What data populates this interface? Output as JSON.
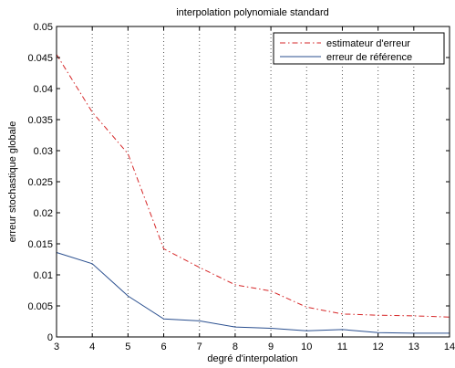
{
  "chart_data": {
    "type": "line",
    "title": "interpolation polynomiale standard",
    "xlabel": "degré d'interpolation",
    "ylabel": "erreur stochastique globale",
    "xlim": [
      3,
      14
    ],
    "ylim": [
      0,
      0.05
    ],
    "xticks": [
      "3",
      "4",
      "5",
      "6",
      "7",
      "8",
      "9",
      "10",
      "11",
      "12",
      "13",
      "14"
    ],
    "yticks": [
      "0",
      "0.005",
      "0.01",
      "0.015",
      "0.02",
      "0.025",
      "0.03",
      "0.035",
      "0.04",
      "0.045",
      "0.05"
    ],
    "grid": "vertical-dotted",
    "legend_position": "top-right",
    "x": [
      3,
      4,
      5,
      6,
      7,
      8,
      9,
      10,
      11,
      12,
      13,
      14
    ],
    "series": [
      {
        "name": "estimateur d'erreur",
        "color": "#d62728",
        "style": "dash-dot",
        "values": [
          0.0455,
          0.0362,
          0.0295,
          0.0142,
          0.0112,
          0.0084,
          0.0074,
          0.0048,
          0.0037,
          0.0035,
          0.0034,
          0.0032
        ]
      },
      {
        "name": "erreur de référence",
        "color": "#2a4f8f",
        "style": "solid",
        "values": [
          0.0136,
          0.0118,
          0.0066,
          0.0029,
          0.0026,
          0.0016,
          0.0014,
          0.001,
          0.0012,
          0.0007,
          0.0006,
          0.0006
        ]
      }
    ]
  }
}
